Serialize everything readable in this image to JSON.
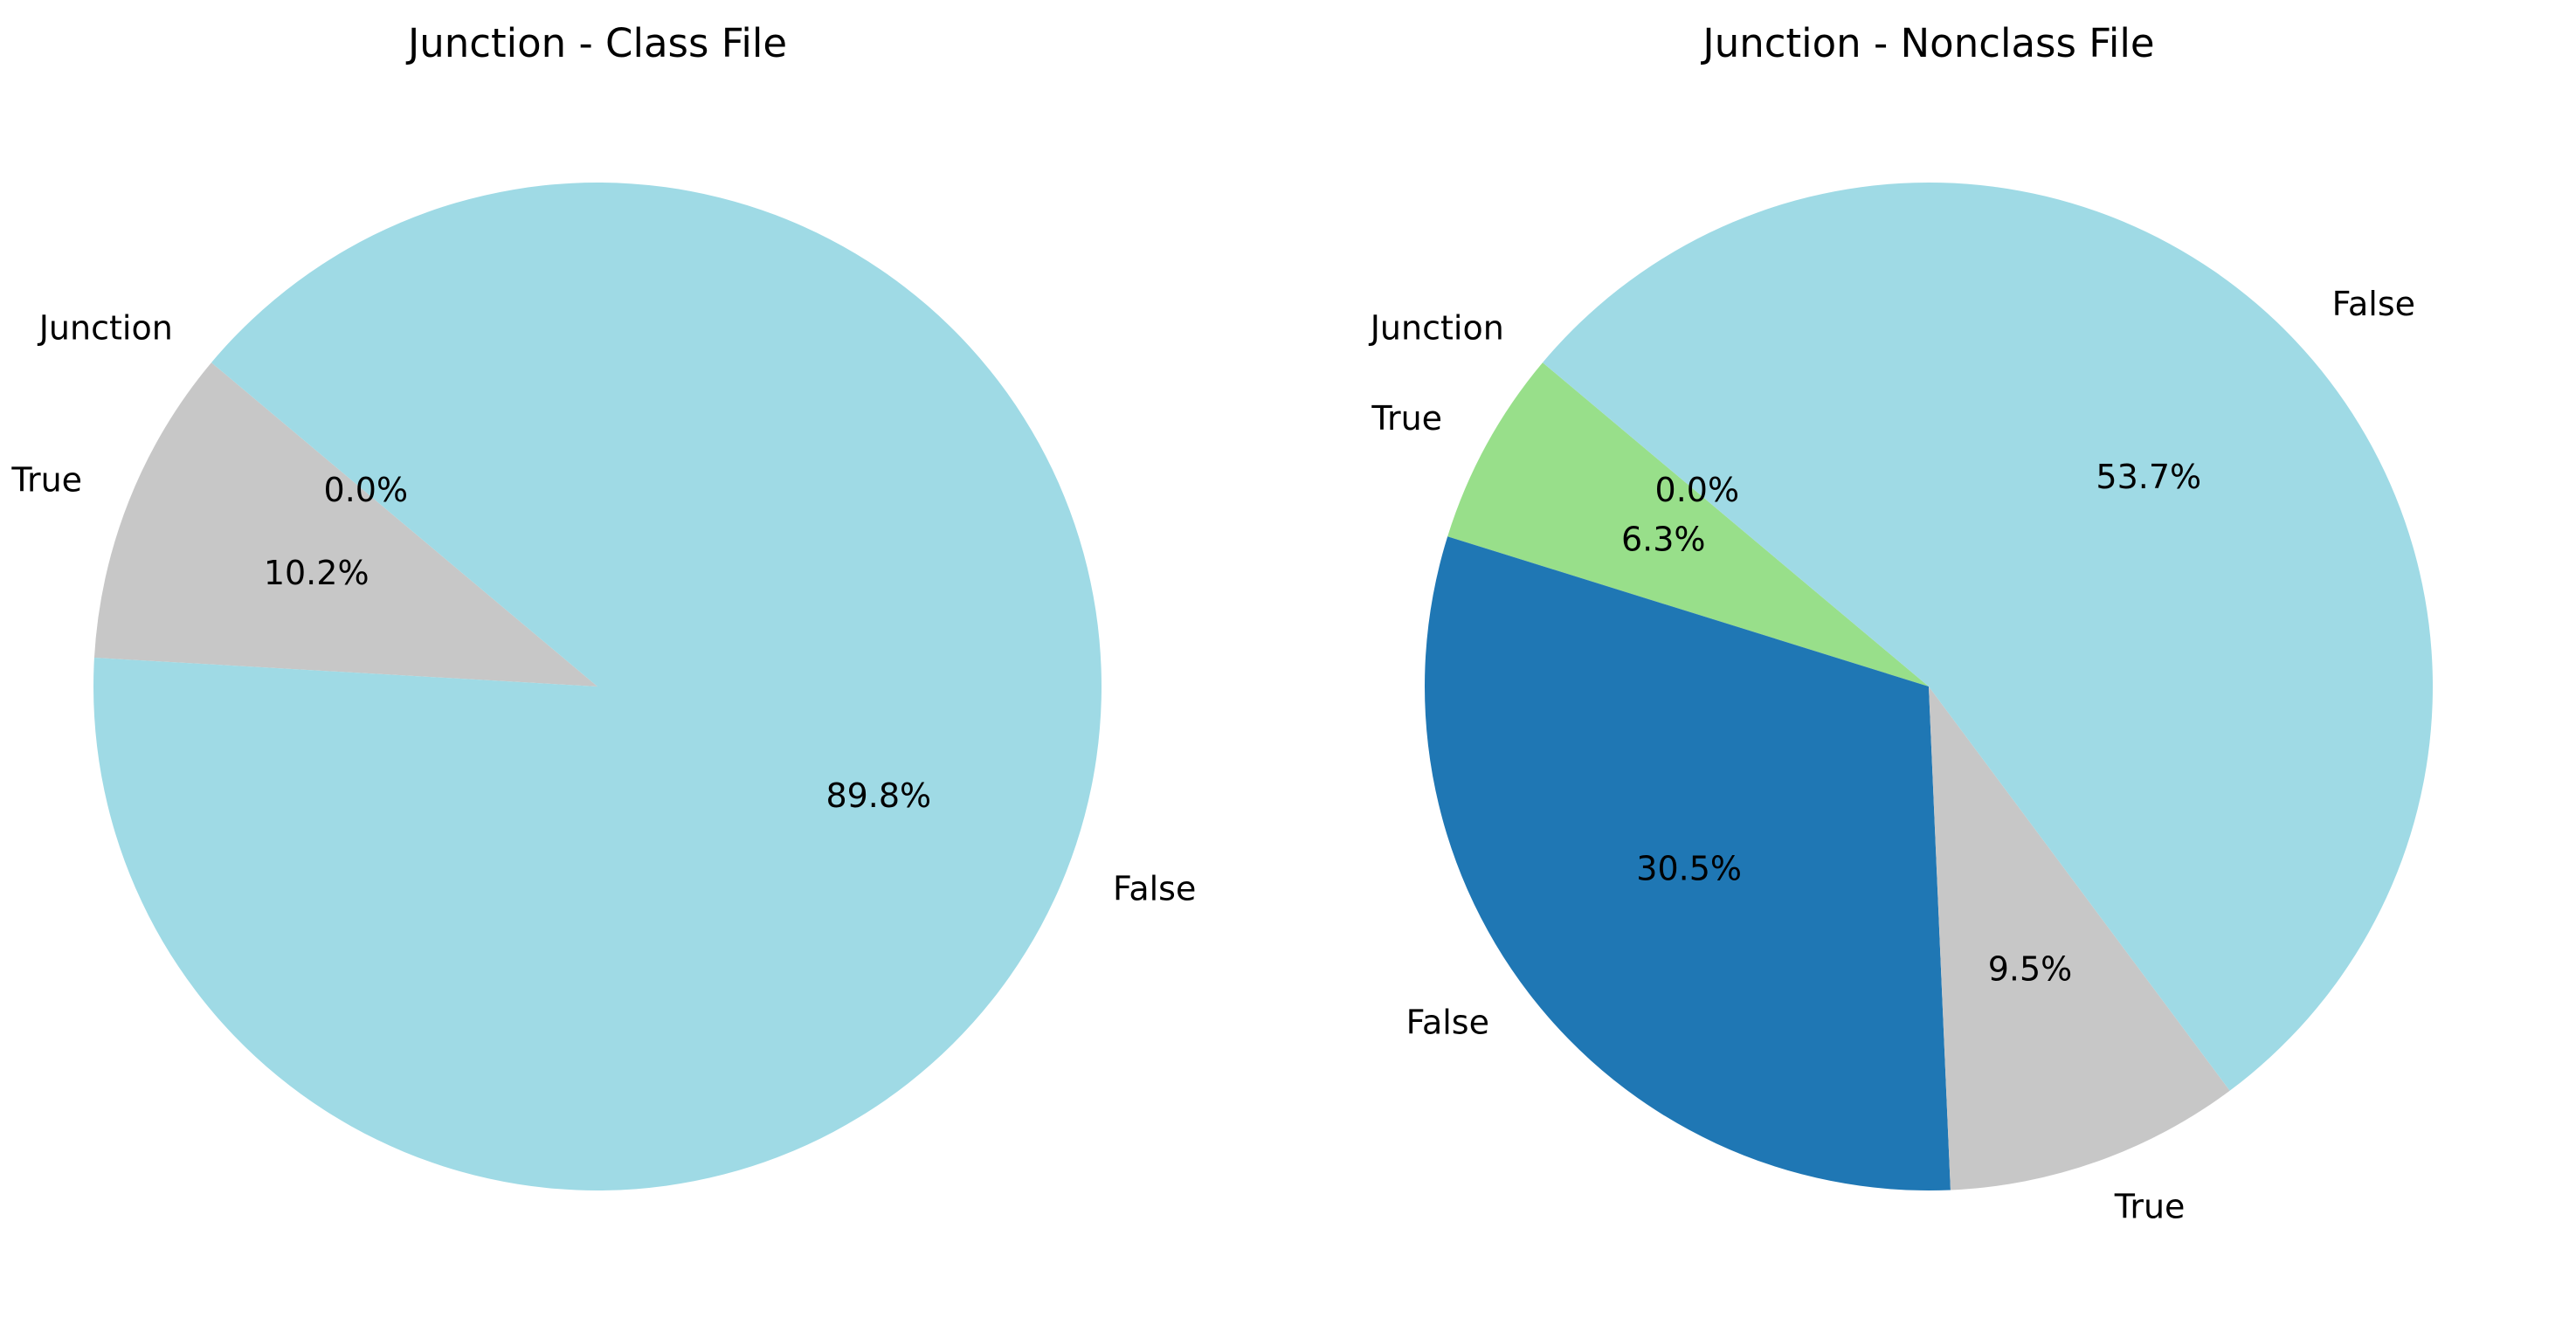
{
  "chart_data": [
    {
      "type": "pie",
      "title": "Junction - Class File",
      "slices": [
        {
          "label": "Junction",
          "value": 0.0,
          "pct_label": "0.0%",
          "color": "#17becf"
        },
        {
          "label": "True",
          "value": 10.2,
          "pct_label": "10.2%",
          "color": "#c7c7c7"
        },
        {
          "label": "False",
          "value": 89.8,
          "pct_label": "89.8%",
          "color": "#9fdae5"
        }
      ]
    },
    {
      "type": "pie",
      "title": "Junction - Nonclass File",
      "slices": [
        {
          "label": "Junction",
          "value": 0.0,
          "pct_label": "0.0%",
          "color": "#17becf"
        },
        {
          "label": "True",
          "value": 6.3,
          "pct_label": "6.3%",
          "color": "#98df8a"
        },
        {
          "label": "False",
          "value": 30.5,
          "pct_label": "30.5%",
          "color": "#1f77b4"
        },
        {
          "label": "True",
          "value": 9.5,
          "pct_label": "9.5%",
          "color": "#c7c7c7"
        },
        {
          "label": "False",
          "value": 53.7,
          "pct_label": "53.7%",
          "color": "#9fdae5"
        }
      ]
    }
  ]
}
